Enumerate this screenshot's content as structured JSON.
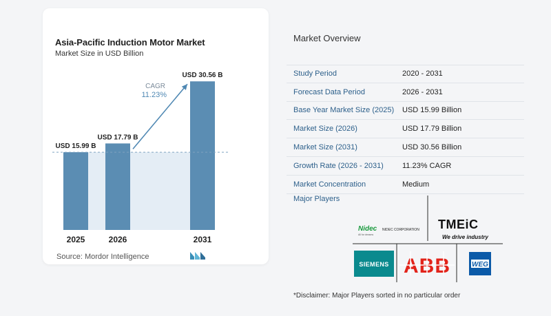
{
  "chart": {
    "title": "Asia-Pacific Induction Motor Market",
    "subtitle": "Market Size in USD Billion",
    "source": "Source:  Mordor Intelligence"
  },
  "chart_data": {
    "type": "bar",
    "title": "Asia-Pacific Induction Motor Market",
    "subtitle": "Market Size in USD Billion",
    "xlabel": "",
    "ylabel": "",
    "categories": [
      "2025",
      "2026",
      "2031"
    ],
    "values": [
      15.99,
      17.79,
      30.56
    ],
    "value_labels": [
      "USD 15.99 B",
      "USD 17.79 B",
      "USD 30.56 B"
    ],
    "ylim": [
      0,
      32
    ],
    "grid": false,
    "annotation": {
      "label": "CAGR",
      "value": "11.23%"
    },
    "bar_color": "#5b8db3",
    "shade_color": "#e4edf5",
    "arrow_color": "#4f88b3"
  },
  "overview": {
    "title": "Market Overview",
    "rows": [
      {
        "label": "Study Period",
        "value": "2020 - 2031"
      },
      {
        "label": "Forecast Data Period",
        "value": "2026 - 2031"
      },
      {
        "label": "Base Year Market Size (2025)",
        "value": "USD 15.99 Billion"
      },
      {
        "label": "Market Size (2026)",
        "value": "USD 17.79 Billion"
      },
      {
        "label": "Market Size (2031)",
        "value": "USD 30.56 Billion"
      },
      {
        "label": "Growth Rate (2026 - 2031)",
        "value": "11.23% CAGR"
      },
      {
        "label": "Market Concentration",
        "value": "Medium"
      }
    ],
    "players_title": "Major Players",
    "players": [
      {
        "name": "Nidec",
        "text": "Nidec",
        "caption": "NIDEC CORPORATION",
        "tagline": "All for dreams"
      },
      {
        "name": "TMEIC",
        "text": "TMEiC",
        "tagline": "We drive industry"
      },
      {
        "name": "Siemens",
        "text": "SIEMENS"
      },
      {
        "name": "ABB",
        "text": "ABB"
      },
      {
        "name": "WEG",
        "text": "WEG"
      }
    ],
    "disclaimer": "*Disclaimer: Major Players sorted in no particular order"
  }
}
